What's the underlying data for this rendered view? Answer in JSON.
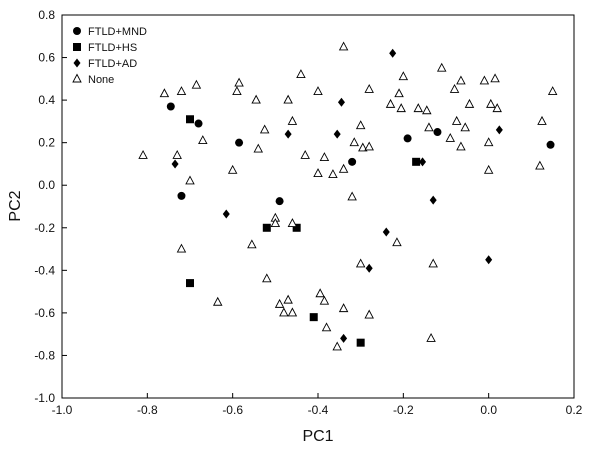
{
  "chart_data": {
    "type": "scatter",
    "xlabel": "PC1",
    "ylabel": "PC2",
    "xlim": [
      -1.0,
      0.2
    ],
    "ylim": [
      -1.0,
      0.8
    ],
    "x_ticks": [
      "-1.0",
      "-0.8",
      "-0.6",
      "-0.4",
      "-0.2",
      "0.0",
      "0.2"
    ],
    "y_ticks": [
      "-1.0",
      "-0.8",
      "-0.6",
      "-0.4",
      "-0.2",
      "0.0",
      "0.2",
      "0.4",
      "0.6",
      "0.8"
    ],
    "legend_position": "top-left",
    "series": [
      {
        "name": "FTLD+MND",
        "marker": "circle",
        "color": "#000000",
        "points": [
          [
            -0.745,
            0.37
          ],
          [
            -0.68,
            0.29
          ],
          [
            -0.585,
            0.2
          ],
          [
            -0.72,
            -0.05
          ],
          [
            -0.49,
            -0.075
          ],
          [
            -0.32,
            0.11
          ],
          [
            -0.19,
            0.22
          ],
          [
            -0.12,
            0.25
          ],
          [
            0.145,
            0.19
          ]
        ]
      },
      {
        "name": "FTLD+HS",
        "marker": "square",
        "color": "#000000",
        "points": [
          [
            -0.7,
            0.31
          ],
          [
            -0.52,
            -0.2
          ],
          [
            -0.45,
            -0.2
          ],
          [
            -0.7,
            -0.46
          ],
          [
            -0.41,
            -0.62
          ],
          [
            -0.3,
            -0.74
          ],
          [
            -0.17,
            0.11
          ]
        ]
      },
      {
        "name": "FTLD+AD",
        "marker": "diamond",
        "color": "#000000",
        "points": [
          [
            -0.225,
            0.62
          ],
          [
            -0.345,
            0.39
          ],
          [
            -0.47,
            0.24
          ],
          [
            -0.355,
            0.24
          ],
          [
            -0.735,
            0.1
          ],
          [
            -0.155,
            0.11
          ],
          [
            0.025,
            0.26
          ],
          [
            -0.13,
            -0.07
          ],
          [
            -0.615,
            -0.135
          ],
          [
            -0.24,
            -0.22
          ],
          [
            -0.28,
            -0.39
          ],
          [
            -0.34,
            -0.72
          ],
          [
            0.0,
            -0.35
          ]
        ]
      },
      {
        "name": "None",
        "marker": "triangle",
        "color": "#000000",
        "points": [
          [
            -0.34,
            0.65
          ],
          [
            -0.44,
            0.52
          ],
          [
            -0.2,
            0.51
          ],
          [
            -0.11,
            0.55
          ],
          [
            -0.065,
            0.49
          ],
          [
            -0.01,
            0.49
          ],
          [
            0.015,
            0.5
          ],
          [
            -0.685,
            0.47
          ],
          [
            -0.585,
            0.48
          ],
          [
            -0.72,
            0.44
          ],
          [
            -0.76,
            0.43
          ],
          [
            -0.59,
            0.44
          ],
          [
            -0.545,
            0.4
          ],
          [
            -0.47,
            0.4
          ],
          [
            -0.4,
            0.44
          ],
          [
            -0.28,
            0.45
          ],
          [
            -0.21,
            0.43
          ],
          [
            -0.08,
            0.45
          ],
          [
            0.15,
            0.44
          ],
          [
            -0.045,
            0.38
          ],
          [
            0.005,
            0.38
          ],
          [
            -0.205,
            0.36
          ],
          [
            -0.23,
            0.38
          ],
          [
            -0.165,
            0.36
          ],
          [
            -0.145,
            0.35
          ],
          [
            0.02,
            0.36
          ],
          [
            -0.3,
            0.28
          ],
          [
            -0.14,
            0.27
          ],
          [
            -0.075,
            0.3
          ],
          [
            -0.055,
            0.27
          ],
          [
            0.125,
            0.3
          ],
          [
            -0.67,
            0.21
          ],
          [
            -0.525,
            0.26
          ],
          [
            -0.46,
            0.3
          ],
          [
            -0.295,
            0.175
          ],
          [
            -0.315,
            0.2
          ],
          [
            -0.28,
            0.18
          ],
          [
            -0.09,
            0.22
          ],
          [
            -0.065,
            0.18
          ],
          [
            0.0,
            0.2
          ],
          [
            -0.81,
            0.14
          ],
          [
            -0.73,
            0.14
          ],
          [
            -0.54,
            0.17
          ],
          [
            -0.43,
            0.14
          ],
          [
            -0.385,
            0.13
          ],
          [
            -0.34,
            0.075
          ],
          [
            -0.365,
            0.05
          ],
          [
            -0.4,
            0.055
          ],
          [
            -0.6,
            0.07
          ],
          [
            0.0,
            0.07
          ],
          [
            0.12,
            0.09
          ],
          [
            -0.7,
            0.02
          ],
          [
            -0.555,
            -0.28
          ],
          [
            -0.5,
            -0.155
          ],
          [
            -0.5,
            -0.18
          ],
          [
            -0.46,
            -0.18
          ],
          [
            -0.32,
            -0.055
          ],
          [
            -0.215,
            -0.27
          ],
          [
            -0.72,
            -0.3
          ],
          [
            -0.3,
            -0.37
          ],
          [
            -0.13,
            -0.37
          ],
          [
            -0.52,
            -0.44
          ],
          [
            -0.635,
            -0.55
          ],
          [
            -0.49,
            -0.56
          ],
          [
            -0.48,
            -0.6
          ],
          [
            -0.46,
            -0.6
          ],
          [
            -0.47,
            -0.54
          ],
          [
            -0.395,
            -0.51
          ],
          [
            -0.385,
            -0.545
          ],
          [
            -0.34,
            -0.58
          ],
          [
            -0.28,
            -0.61
          ],
          [
            -0.38,
            -0.67
          ],
          [
            -0.355,
            -0.76
          ],
          [
            -0.135,
            -0.72
          ]
        ]
      }
    ]
  }
}
